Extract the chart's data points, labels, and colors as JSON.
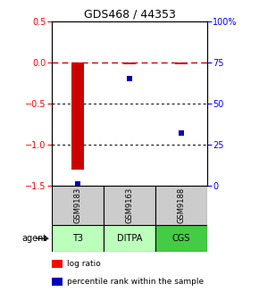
{
  "title": "GDS468 / 44353",
  "samples": [
    "GSM9183",
    "GSM9163",
    "GSM9188"
  ],
  "agents": [
    "T3",
    "DITPA",
    "CGS"
  ],
  "log_ratios": [
    -1.3,
    -0.02,
    -0.02
  ],
  "percentile_ranks": [
    1,
    65,
    32
  ],
  "ylim_left": [
    -1.5,
    0.5
  ],
  "ylim_right": [
    0,
    100
  ],
  "left_ticks": [
    0.5,
    0.0,
    -0.5,
    -1.0,
    -1.5
  ],
  "right_ticks": [
    100,
    75,
    50,
    25,
    0
  ],
  "right_tick_labels": [
    "100%",
    "75",
    "50",
    "25",
    "0"
  ],
  "bar_color": "#cc0000",
  "dot_color": "#0000bb",
  "ref_line_color": "#cc0000",
  "grid_color": "#000000",
  "agent_colors": [
    "#bbffbb",
    "#bbffbb",
    "#44cc44"
  ],
  "sample_bg": "#cccccc",
  "legend_bar_label": "log ratio",
  "legend_dot_label": "percentile rank within the sample",
  "bar_width": 0.25
}
